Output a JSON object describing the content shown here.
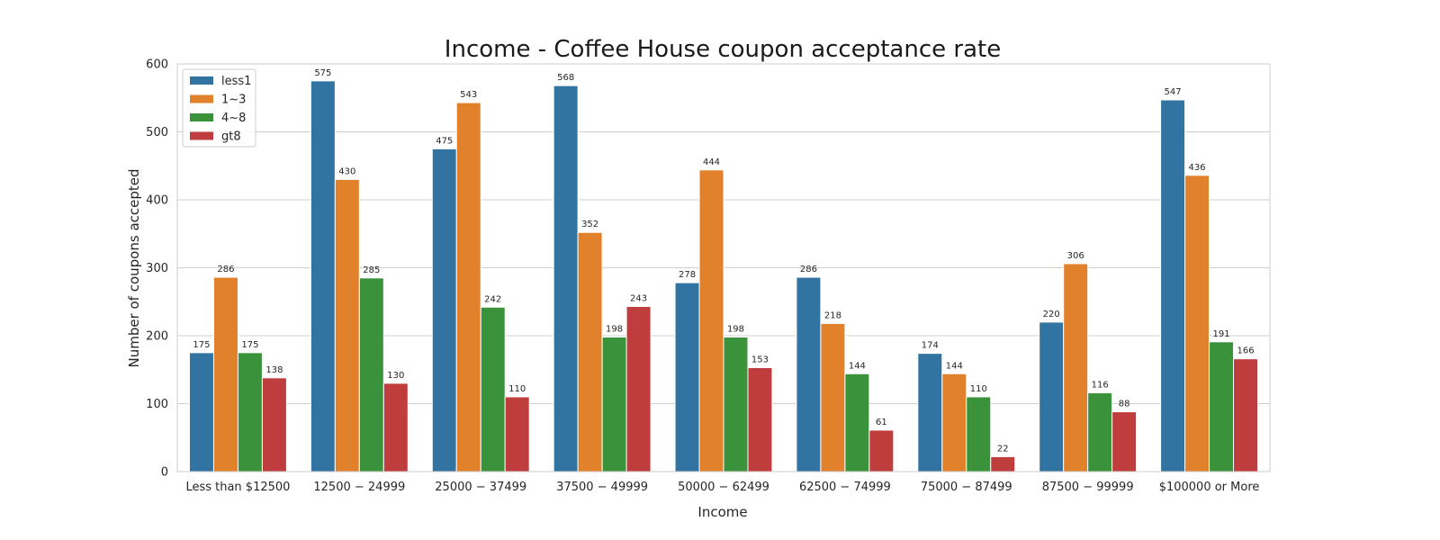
{
  "chart_data": {
    "type": "bar",
    "title": "Income - Coffee House coupon acceptance rate",
    "xlabel": "Income",
    "ylabel": "Number of coupons accepted",
    "ylim": [
      0,
      600
    ],
    "yticks": [
      0,
      100,
      200,
      300,
      400,
      500,
      600
    ],
    "grid": true,
    "legend_position": "top-left",
    "categories": [
      "Less than $12500",
      "$12500 - $24999",
      "$25000 - $37499",
      "$37500 - $49999",
      "$50000 - $62499",
      "$62500 - $74999",
      "$75000 - $87499",
      "$87500 - $99999",
      "$100000 or More"
    ],
    "category_display": [
      "Less than $12500",
      "12500 − 24999",
      "25000 − 37499",
      "37500 − 49999",
      "50000 − 62499",
      "62500 − 74999",
      "75000 − 87499",
      "87500 − 99999",
      "$100000 or More"
    ],
    "series": [
      {
        "name": "less1",
        "color": "#3274a1",
        "values": [
          175,
          575,
          475,
          568,
          278,
          286,
          174,
          220,
          547
        ]
      },
      {
        "name": "1~3",
        "color": "#e1812c",
        "values": [
          286,
          430,
          543,
          352,
          444,
          218,
          144,
          306,
          436
        ]
      },
      {
        "name": "4~8",
        "color": "#3a923a",
        "values": [
          175,
          285,
          242,
          198,
          198,
          144,
          110,
          116,
          191
        ]
      },
      {
        "name": "gt8",
        "color": "#c03d3e",
        "values": [
          138,
          130,
          110,
          243,
          153,
          61,
          22,
          88,
          166
        ]
      }
    ]
  }
}
